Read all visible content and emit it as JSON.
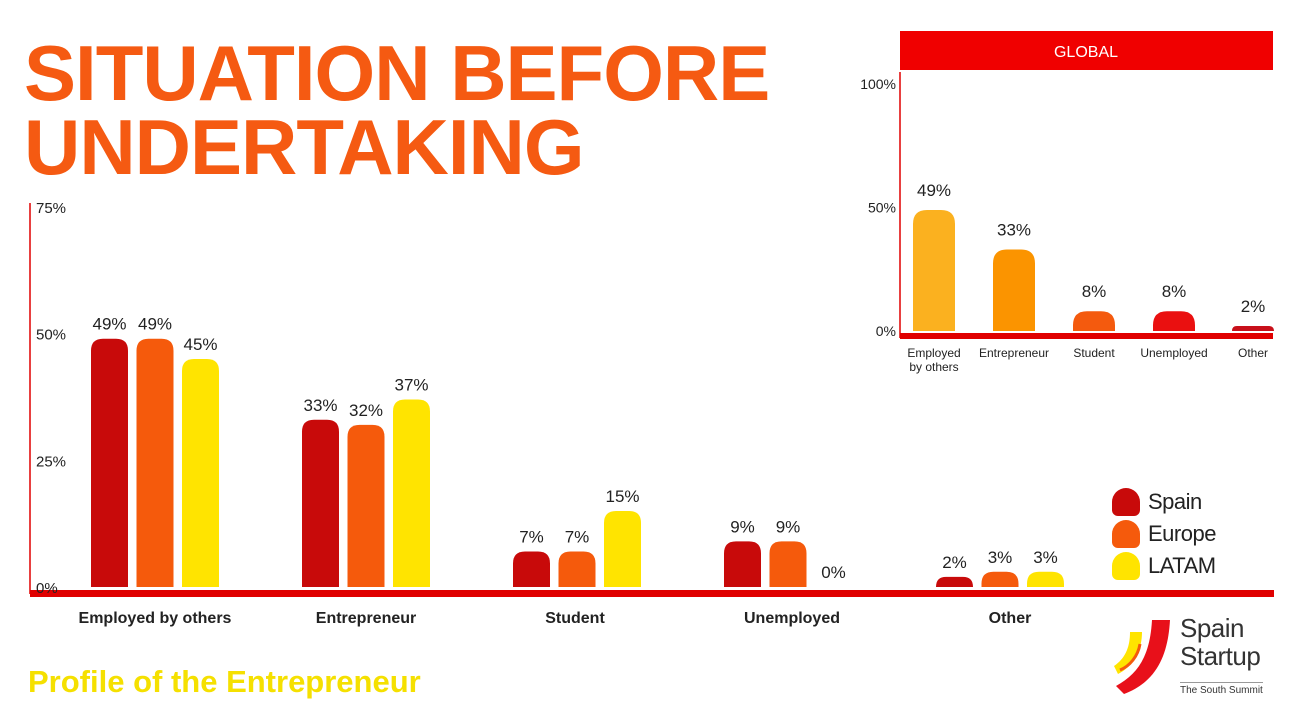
{
  "page": {
    "title_line1": "SITUATION BEFORE",
    "title_line2": "UNDERTAKING",
    "subtitle": "Profile of the Entrepreneur"
  },
  "logo": {
    "line1": "Spain",
    "line2": "Startup",
    "tagline": "The South Summit"
  },
  "colors": {
    "spain": "#c80a0a",
    "europe": "#f55a0c",
    "latam": "#ffe400",
    "axis": "#e00000",
    "title": "#f55a12",
    "header": "#f00000",
    "global_bars": [
      "#fbb11f",
      "#fb9400",
      "#f45a0e",
      "#ea1010",
      "#c8101a"
    ]
  },
  "legend": [
    {
      "label": "Spain",
      "color": "#c80a0a"
    },
    {
      "label": "Europe",
      "color": "#f55a0c"
    },
    {
      "label": "LATAM",
      "color": "#ffe400"
    }
  ],
  "chart_data": [
    {
      "type": "bar",
      "title": "SITUATION BEFORE UNDERTAKING",
      "categories": [
        "Employed by others",
        "Entrepreneur",
        "Student",
        "Unemployed",
        "Other"
      ],
      "series": [
        {
          "name": "Spain",
          "values": [
            49,
            33,
            7,
            9,
            2
          ],
          "labels": [
            "49%",
            "33%",
            "7%",
            "9%",
            "2%"
          ]
        },
        {
          "name": "Europe",
          "values": [
            49,
            32,
            7,
            9,
            3
          ],
          "labels": [
            "49%",
            "32%",
            "7%",
            "9%",
            "3%"
          ]
        },
        {
          "name": "LATAM",
          "values": [
            45,
            37,
            15,
            0,
            3
          ],
          "labels": [
            "45%",
            "37%",
            "15%",
            "0%",
            "3%"
          ]
        }
      ],
      "ylim": [
        0,
        75
      ],
      "yticks": [
        0,
        25,
        50,
        75
      ],
      "ytick_labels": [
        "0%",
        "25%",
        "50%",
        "75%"
      ],
      "xlabel": "",
      "ylabel": ""
    },
    {
      "type": "bar",
      "title": "GLOBAL",
      "categories": [
        "Employed by others",
        "Entrepreneur",
        "Student",
        "Unemployed",
        "Other"
      ],
      "values": [
        49,
        33,
        8,
        8,
        2
      ],
      "labels": [
        "49%",
        "33%",
        "8%",
        "8%",
        "2%"
      ],
      "ylim": [
        0,
        100
      ],
      "yticks": [
        0,
        50,
        100
      ],
      "ytick_labels": [
        "0%",
        "50%",
        "100%"
      ],
      "xlabel": "",
      "ylabel": ""
    }
  ]
}
